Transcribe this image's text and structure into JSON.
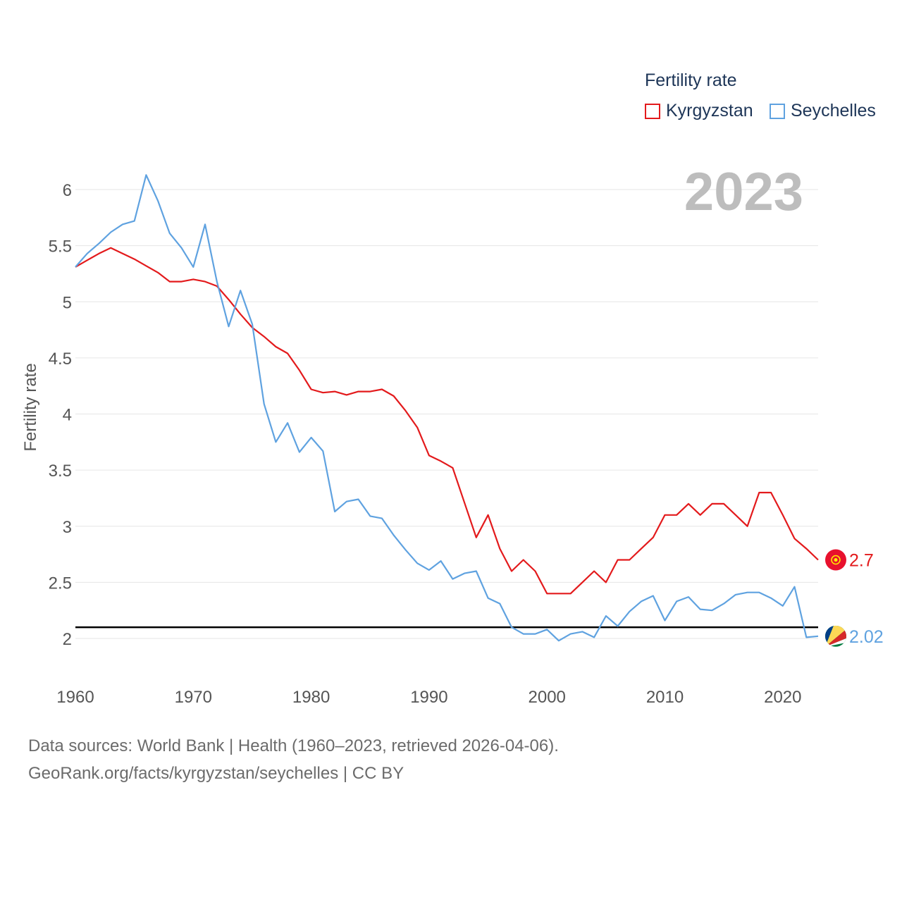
{
  "legend": {
    "title": "Fertility rate"
  },
  "year_watermark": "2023",
  "footer": {
    "line1": "Data sources: World Bank | Health (1960–2023, retrieved 2026-04-06).",
    "line2": "GeoRank.org/facts/kyrgyzstan/seychelles | CC BY"
  },
  "chart_data": {
    "type": "line",
    "ylabel": "Fertility rate",
    "xlabel": "",
    "xlim": [
      1960,
      2023
    ],
    "ylim": [
      1.8,
      6.3
    ],
    "x_ticks": [
      1960,
      1970,
      1980,
      1990,
      2000,
      2010,
      2020
    ],
    "y_ticks": [
      2,
      2.5,
      3,
      3.5,
      4,
      4.5,
      5,
      5.5,
      6
    ],
    "y_tick_labels": [
      "2",
      "2.5",
      "3",
      "3.5",
      "4",
      "4.5",
      "5",
      "5.5",
      "6"
    ],
    "x_tick_labels": [
      "1960",
      "1970",
      "1980",
      "1990",
      "2000",
      "2010",
      "2020"
    ],
    "reference_line": {
      "value": 2.1,
      "color": "#000000"
    },
    "grid": true,
    "legend_position": "top-right",
    "series": [
      {
        "name": "Kyrgyzstan",
        "color": "#e31a1c",
        "end_label": "2.7",
        "flag_icon": "kyrgyzstan-flag-icon",
        "x": [
          1960,
          1961,
          1962,
          1963,
          1964,
          1965,
          1966,
          1967,
          1968,
          1969,
          1970,
          1971,
          1972,
          1973,
          1974,
          1975,
          1976,
          1977,
          1978,
          1979,
          1980,
          1981,
          1982,
          1983,
          1984,
          1985,
          1986,
          1987,
          1988,
          1989,
          1990,
          1991,
          1992,
          1993,
          1994,
          1995,
          1996,
          1997,
          1998,
          1999,
          2000,
          2001,
          2002,
          2003,
          2004,
          2005,
          2006,
          2007,
          2008,
          2009,
          2010,
          2011,
          2012,
          2013,
          2014,
          2015,
          2016,
          2017,
          2018,
          2019,
          2020,
          2021,
          2022,
          2023
        ],
        "values": [
          5.31,
          5.37,
          5.43,
          5.48,
          5.43,
          5.38,
          5.32,
          5.26,
          5.18,
          5.18,
          5.2,
          5.18,
          5.14,
          5.02,
          4.89,
          4.77,
          4.69,
          4.6,
          4.54,
          4.39,
          4.22,
          4.19,
          4.2,
          4.17,
          4.2,
          4.2,
          4.22,
          4.16,
          4.03,
          3.88,
          3.63,
          3.58,
          3.52,
          3.21,
          2.9,
          3.1,
          2.8,
          2.6,
          2.7,
          2.6,
          2.4,
          2.4,
          2.4,
          2.5,
          2.6,
          2.5,
          2.7,
          2.7,
          2.8,
          2.9,
          3.1,
          3.1,
          3.2,
          3.1,
          3.2,
          3.2,
          3.1,
          3.0,
          3.3,
          3.3,
          3.1,
          2.89,
          2.8,
          2.7
        ]
      },
      {
        "name": "Seychelles",
        "color": "#5fa2e0",
        "end_label": "2.02",
        "flag_icon": "seychelles-flag-icon",
        "x": [
          1960,
          1961,
          1962,
          1963,
          1964,
          1965,
          1966,
          1967,
          1968,
          1969,
          1970,
          1971,
          1972,
          1973,
          1974,
          1975,
          1976,
          1977,
          1978,
          1979,
          1980,
          1981,
          1982,
          1983,
          1984,
          1985,
          1986,
          1987,
          1988,
          1989,
          1990,
          1991,
          1992,
          1993,
          1994,
          1995,
          1996,
          1997,
          1998,
          1999,
          2000,
          2001,
          2002,
          2003,
          2004,
          2005,
          2006,
          2007,
          2008,
          2009,
          2010,
          2011,
          2012,
          2013,
          2014,
          2015,
          2016,
          2017,
          2018,
          2019,
          2020,
          2021,
          2022,
          2023
        ],
        "values": [
          5.31,
          5.43,
          5.52,
          5.62,
          5.69,
          5.72,
          6.13,
          5.9,
          5.61,
          5.48,
          5.31,
          5.69,
          5.18,
          4.78,
          5.1,
          4.8,
          4.09,
          3.75,
          3.92,
          3.66,
          3.79,
          3.67,
          3.13,
          3.22,
          3.24,
          3.09,
          3.07,
          2.92,
          2.79,
          2.67,
          2.61,
          2.69,
          2.53,
          2.58,
          2.6,
          2.36,
          2.31,
          2.1,
          2.04,
          2.04,
          2.08,
          1.98,
          2.04,
          2.06,
          2.01,
          2.2,
          2.11,
          2.24,
          2.33,
          2.38,
          2.16,
          2.33,
          2.37,
          2.26,
          2.25,
          2.31,
          2.39,
          2.41,
          2.41,
          2.36,
          2.29,
          2.46,
          2.01,
          2.02
        ]
      }
    ]
  }
}
